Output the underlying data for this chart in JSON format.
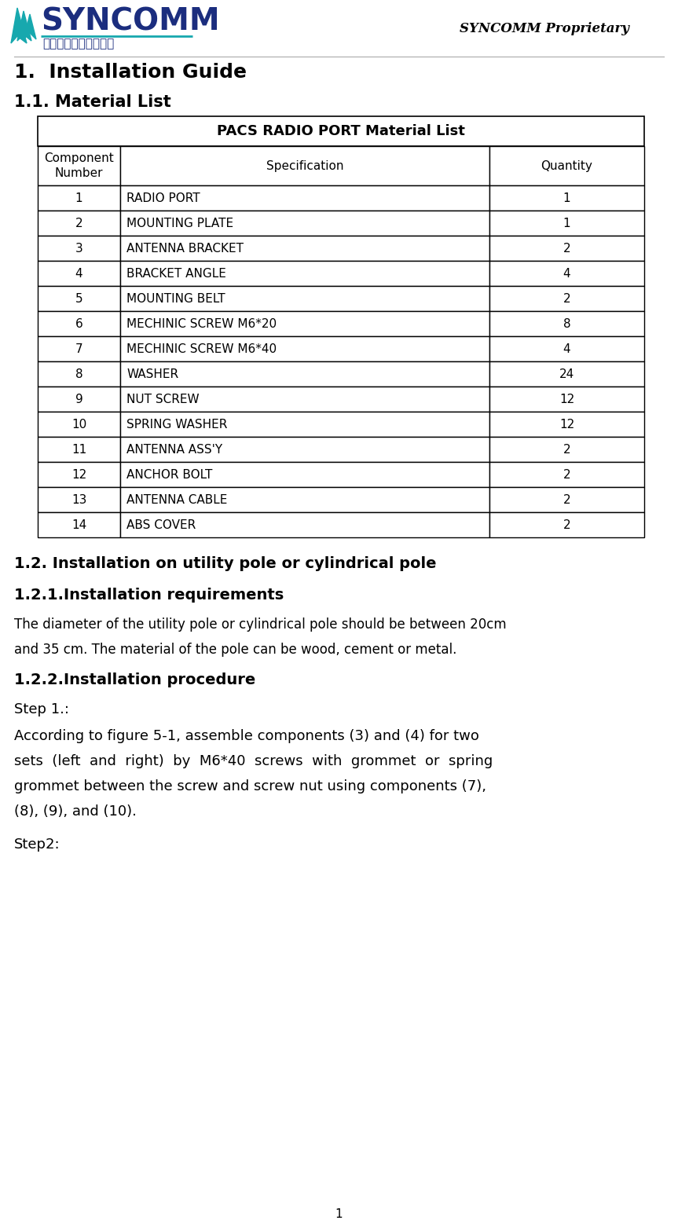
{
  "title_main": "1.  Installation Guide",
  "section_11": "1.1. Material List",
  "table_title": "PACS RADIO PORT Material List",
  "table_headers": [
    "Component\nNumber",
    "Specification",
    "Quantity"
  ],
  "table_rows": [
    [
      "1",
      "RADIO PORT",
      "1"
    ],
    [
      "2",
      "MOUNTING PLATE",
      "1"
    ],
    [
      "3",
      "ANTENNA BRACKET",
      "2"
    ],
    [
      "4",
      "BRACKET ANGLE",
      "4"
    ],
    [
      "5",
      "MOUNTING BELT",
      "2"
    ],
    [
      "6",
      "MECHINIC SCREW M6*20",
      "8"
    ],
    [
      "7",
      "MECHINIC SCREW M6*40",
      "4"
    ],
    [
      "8",
      "WASHER",
      "24"
    ],
    [
      "9",
      "NUT SCREW",
      "12"
    ],
    [
      "10",
      "SPRING WASHER",
      "12"
    ],
    [
      "11",
      "ANTENNA ASS'Y",
      "2"
    ],
    [
      "12",
      "ANCHOR BOLT",
      "2"
    ],
    [
      "13",
      "ANTENNA CABLE",
      "2"
    ],
    [
      "14",
      "ABS COVER",
      "2"
    ]
  ],
  "section_12": "1.2. Installation on utility pole or cylindrical pole",
  "section_121": "1.2.1.Installation requirements",
  "para_121a": "The diameter of the utility pole or cylindrical pole should be between 20cm",
  "para_121b": "and 35 cm. The material of the pole can be wood, cement or metal.",
  "section_122": "1.2.2.Installation procedure",
  "step1_label": "Step 1.:",
  "step1_lines": [
    "According to figure 5-1, assemble components (3) and (4) for two",
    "sets  (left  and  right)  by  M6*40  screws  with  grommet  or  spring",
    "grommet between the screw and screw nut using components (7),",
    "(8), (9), and (10)."
  ],
  "step2_label": "Step2:",
  "header_right": "SYNCOMM Proprietary",
  "page_num": "1",
  "syncomm_text": "SYNCOMM",
  "chinese_text": "凌源通訊股份有限公司",
  "logo_color_teal": "#17A8AE",
  "logo_color_dark_blue": "#1B2D7E",
  "text_color": "#000000",
  "bg_color": "#ffffff"
}
